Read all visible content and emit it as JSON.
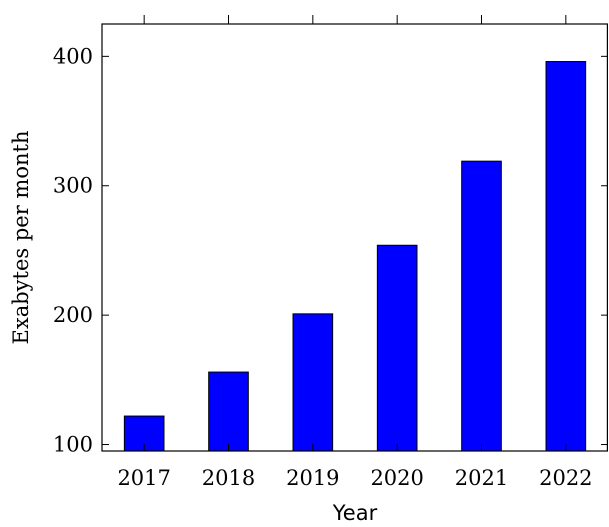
{
  "chart_data": {
    "type": "bar",
    "categories": [
      "2017",
      "2018",
      "2019",
      "2020",
      "2021",
      "2022"
    ],
    "values": [
      122,
      156,
      201,
      254,
      319,
      396
    ],
    "xlabel": "Year",
    "ylabel": "Exabytes per month",
    "ylim": [
      95,
      425
    ],
    "yticks": [
      100,
      200,
      300,
      400
    ],
    "grid": false,
    "bar_color": "#0000ff",
    "bar_edge_color": "#000000"
  }
}
